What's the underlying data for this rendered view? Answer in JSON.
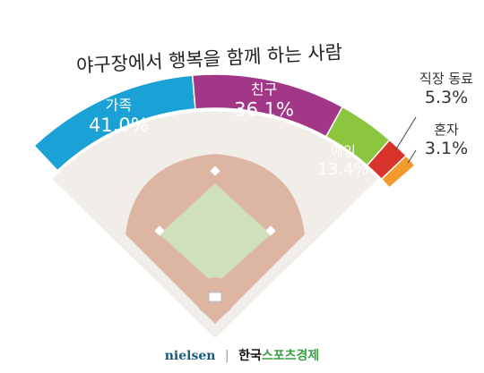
{
  "chart_data": {
    "type": "pie",
    "title": "야구장에서 행복을 함께 하는 사람",
    "categories": [
      "가족",
      "친구",
      "애인",
      "직장 동료",
      "혼자"
    ],
    "values": [
      41.0,
      36.1,
      13.4,
      5.3,
      3.1
    ],
    "value_labels": [
      "41.0%",
      "36.1%",
      "13.4%",
      "5.3%",
      "3.1%"
    ],
    "colors": [
      "#1aa1d6",
      "#a23788",
      "#8cc63f",
      "#d8342c",
      "#f29a2c"
    ]
  },
  "footer": {
    "source": "nielsen",
    "separator": "|",
    "publisher_a": "한국",
    "publisher_b": "스포츠경제"
  }
}
